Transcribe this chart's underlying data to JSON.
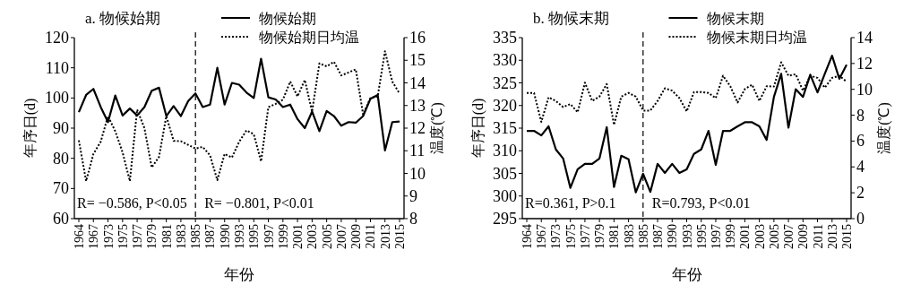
{
  "chart_data": [
    {
      "type": "line",
      "title": "a. 物候始期",
      "xlabel": "年份",
      "ylabel": "年序日(d)",
      "y2label": "温度(℃)",
      "categories": [
        "1964",
        null,
        "1967",
        null,
        "1973",
        null,
        "1975",
        null,
        "1977",
        null,
        "1979",
        null,
        "1981",
        null,
        "1983",
        null,
        "1985",
        null,
        "1987",
        null,
        "1990",
        null,
        "1993",
        null,
        "1995",
        null,
        "1997",
        null,
        "1999",
        null,
        "2001",
        null,
        "2003",
        null,
        "2005",
        null,
        "2007",
        null,
        "2009",
        null,
        "2011",
        null,
        "2013",
        null,
        "2015"
      ],
      "series": [
        {
          "name": "物候始期",
          "color": "#000000",
          "line_style": "solid",
          "values": [
            95.3,
            101,
            103,
            97,
            92,
            100.8,
            94.2,
            96.5,
            94.2,
            97,
            102.4,
            103.4,
            94,
            97.3,
            94,
            99,
            101.5,
            97,
            97.8,
            110,
            97.8,
            105,
            104.4,
            101.8,
            100,
            113,
            100.2,
            99.5,
            97,
            97.8,
            93,
            90,
            95.5,
            89,
            95.7,
            94,
            90.8,
            92,
            91.8,
            94,
            99.7,
            101,
            82.6,
            92,
            92.2
          ]
        },
        {
          "name": "物候始期日均温",
          "color": "#000000",
          "line_style": "dotted",
          "axis": "y2",
          "values": [
            11.46,
            9.66,
            10.86,
            11.4,
            12.53,
            11.86,
            10.93,
            9.66,
            12.82,
            12,
            10.26,
            10.73,
            12.53,
            11.44,
            11.42,
            11.26,
            11.1,
            11.17,
            10.8,
            9.7,
            10.86,
            10.7,
            11.4,
            11.9,
            11.73,
            10.53,
            12.93,
            13.07,
            13.26,
            14.06,
            13.4,
            14.13,
            12.73,
            14.86,
            14.73,
            14.93,
            14.33,
            14.46,
            14.6,
            12.6,
            13.33,
            13.4,
            15.4,
            14.06,
            13.53
          ]
        }
      ],
      "ylim": [
        60,
        120
      ],
      "yticks": [
        60,
        70,
        80,
        90,
        100,
        110,
        120
      ],
      "y2lim": [
        8,
        16
      ],
      "y2ticks": [
        8,
        9,
        10,
        11,
        12,
        13,
        14,
        15,
        16
      ],
      "ref_lines": [
        {
          "axis": "x",
          "value": "1985",
          "line_style": "dashed",
          "color": "#000000"
        }
      ],
      "annotations": [
        "R= −0.586, P<0.05",
        "R= −0.801, P<0.01"
      ],
      "legend": "top right",
      "grid": false
    },
    {
      "type": "line",
      "title": "b. 物候末期",
      "xlabel": "年份",
      "ylabel": "年序日(d)",
      "y2label": "温度(℃)",
      "categories": [
        "1964",
        null,
        "1967",
        null,
        "1973",
        null,
        "1975",
        null,
        "1977",
        null,
        "1979",
        null,
        "1981",
        null,
        "1983",
        null,
        "1985",
        null,
        "1987",
        null,
        "1990",
        null,
        "1993",
        null,
        "1995",
        null,
        "1997",
        null,
        "1999",
        null,
        "2001",
        null,
        "2003",
        null,
        "2005",
        null,
        "2007",
        null,
        "2009",
        null,
        "2011",
        null,
        "2013",
        null,
        "2015"
      ],
      "series": [
        {
          "name": "物候末期",
          "color": "#000000",
          "line_style": "solid",
          "values": [
            314.4,
            314.4,
            313.4,
            315.4,
            310.3,
            308.3,
            301.8,
            305.9,
            307.1,
            307.1,
            308.3,
            315.2,
            302,
            308.9,
            308.1,
            300.8,
            304.9,
            300.9,
            307.1,
            305.1,
            307.1,
            305.1,
            305.9,
            309.3,
            310.3,
            314.4,
            306.9,
            314.4,
            314.4,
            315.4,
            316.3,
            316.3,
            315.4,
            312.4,
            321.9,
            327,
            315.1,
            323.6,
            321.9,
            326.8,
            322.9,
            327,
            331,
            325.9,
            329
          ]
        },
        {
          "name": "物候末期日均温",
          "color": "#000000",
          "line_style": "dotted",
          "axis": "y2",
          "values": [
            9.72,
            9.72,
            7.48,
            9.39,
            9.1,
            8.63,
            8.86,
            8.22,
            10.52,
            9.1,
            9.44,
            10.41,
            7.25,
            9.44,
            9.72,
            9.44,
            8.36,
            8.36,
            9.1,
            10.08,
            9.9,
            9.32,
            8.29,
            9.79,
            9.79,
            9.72,
            9.32,
            11.05,
            10.24,
            8.98,
            10.02,
            10.36,
            9.1,
            10.24,
            10.22,
            12.09,
            11.05,
            11.17,
            9.9,
            11.05,
            10.89,
            10.13,
            10.89,
            11.05,
            10.59
          ]
        }
      ],
      "ylim": [
        295,
        335
      ],
      "yticks": [
        295,
        300,
        305,
        310,
        315,
        320,
        325,
        330,
        335
      ],
      "y2lim": [
        0,
        14
      ],
      "y2ticks": [
        0,
        2,
        4,
        6,
        8,
        10,
        12,
        14
      ],
      "ref_lines": [
        {
          "axis": "x",
          "value": "1985",
          "line_style": "dashed",
          "color": "#000000"
        }
      ],
      "annotations": [
        "R=0.361, P>0.1",
        "R=0.793, P<0.01"
      ],
      "legend": "top right",
      "grid": false
    }
  ]
}
